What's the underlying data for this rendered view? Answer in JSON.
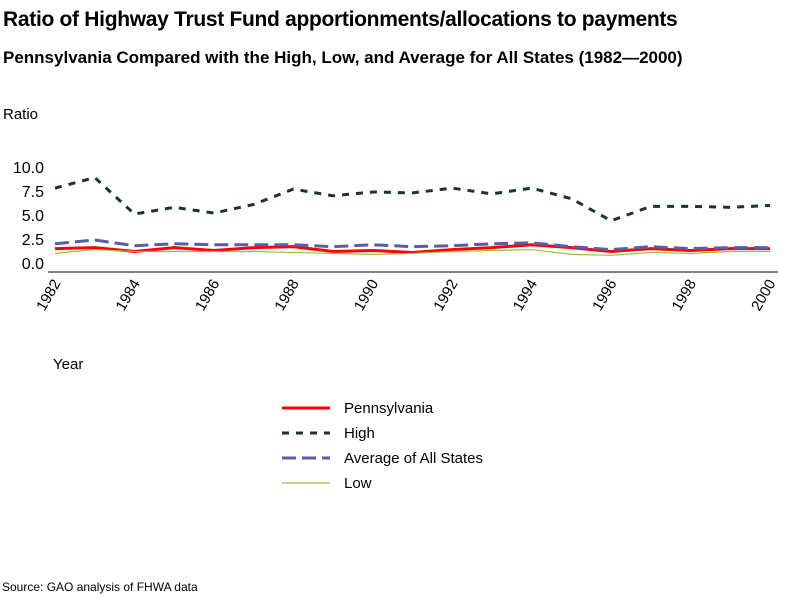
{
  "chart_data": {
    "type": "line",
    "title": "Ratio of Highway Trust Fund apportionments/allocations to payments",
    "subtitle": "Pennsylvania Compared with the High, Low, and Average for All States (1982—2000)",
    "ylabel": "Ratio",
    "xlabel": "Year",
    "ylim": [
      0,
      10
    ],
    "yticks": [
      "0.0",
      "2.5",
      "5.0",
      "7.5",
      "10.0"
    ],
    "yticks_values": [
      0,
      2.5,
      5,
      7.5,
      10
    ],
    "x": [
      1982,
      1983,
      1984,
      1985,
      1986,
      1987,
      1988,
      1989,
      1990,
      1991,
      1992,
      1993,
      1994,
      1995,
      1996,
      1997,
      1998,
      1999,
      2000
    ],
    "xticks": [
      "1982",
      "1984",
      "1986",
      "1988",
      "1990",
      "1992",
      "1994",
      "1996",
      "1998",
      "2000"
    ],
    "series": [
      {
        "name": "Pennsylvania",
        "color": "#ff0000",
        "dash": "",
        "width": 3,
        "values": [
          1.5,
          1.6,
          1.2,
          1.6,
          1.3,
          1.6,
          1.7,
          1.2,
          1.3,
          1.1,
          1.4,
          1.6,
          1.9,
          1.6,
          1.2,
          1.5,
          1.3,
          1.5,
          1.5
        ]
      },
      {
        "name": "High",
        "color": "#16372a",
        "dash": "7 7",
        "width": 3,
        "values": [
          7.8,
          8.9,
          5.1,
          5.8,
          5.2,
          6.1,
          7.7,
          7.0,
          7.4,
          7.3,
          7.8,
          7.2,
          7.8,
          6.7,
          4.4,
          5.9,
          5.9,
          5.8,
          6.0
        ]
      },
      {
        "name": "Average of All States",
        "color": "#5c5ca8",
        "dash": "14 6",
        "width": 3,
        "values": [
          2.0,
          2.4,
          1.8,
          2.0,
          1.9,
          1.9,
          1.9,
          1.7,
          1.9,
          1.7,
          1.8,
          2.0,
          2.1,
          1.7,
          1.4,
          1.7,
          1.5,
          1.6,
          1.6
        ]
      },
      {
        "name": "Low",
        "color": "#9bbf3a",
        "dash": "",
        "width": 1.2,
        "values": [
          1.0,
          1.4,
          1.2,
          1.2,
          1.2,
          1.2,
          1.1,
          1.0,
          0.9,
          1.0,
          1.2,
          1.3,
          1.4,
          0.9,
          0.8,
          1.1,
          1.0,
          1.2,
          1.2
        ]
      }
    ],
    "legend_position": "bottom-center",
    "source": "Source: GAO analysis of FHWA data"
  }
}
